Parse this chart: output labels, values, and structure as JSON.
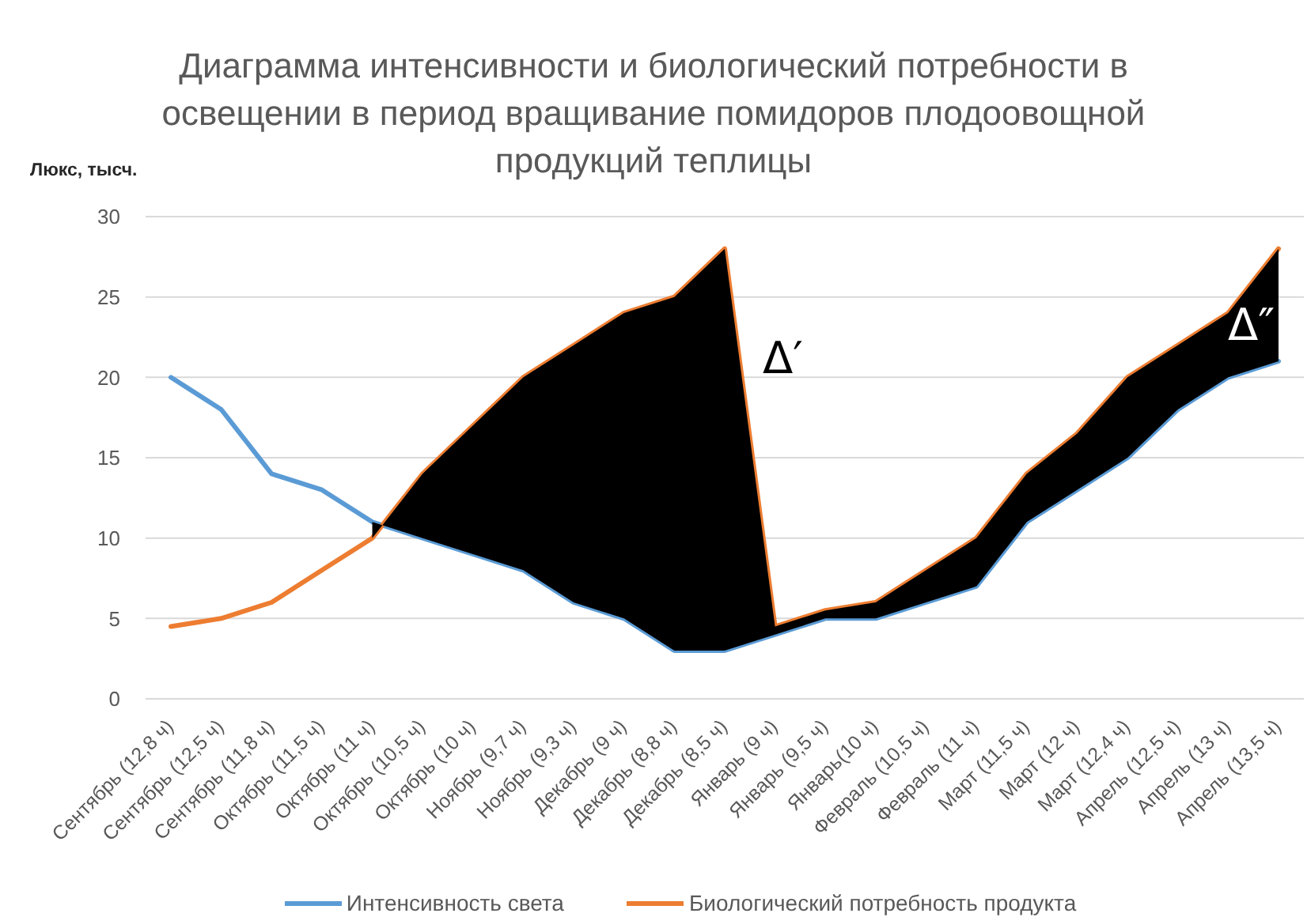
{
  "chart_data": {
    "type": "line",
    "title": "Диаграмма интенсивности и биологический потребности в освещении в период вращивание помидоров плодоовощной продукций теплицы",
    "ylabel": "Люкс, тысч.",
    "categories": [
      "Сентябрь (12,8 ч)",
      "Сентябрь (12,5 ч)",
      "Сентябрь (11,8 ч)",
      "Октябрь (11,5 ч)",
      "Октябрь (11 ч)",
      "Октябрь (10,5 ч)",
      "Октябрь (10 ч)",
      "Ноябрь (9,7 ч)",
      "Ноябрь (9,3 ч)",
      "Декабрь (9 ч)",
      "Декабрь (8,8 ч)",
      "Декабрь (8,5 ч)",
      "Январь (9 ч)",
      "Январь (9,5 ч)",
      "Январь(10 ч)",
      "Февраль (10,5 ч)",
      "Февраль (11 ч)",
      "Март (11,5 ч)",
      "Март (12 ч)",
      "Март (12,4 ч)",
      "Апрель (12,5 ч)",
      "Апрель (13 ч)",
      "Апрель (13,5 ч)"
    ],
    "series": [
      {
        "name": "Интенсивность света",
        "color": "#5b9bd5",
        "values": [
          20,
          18,
          14,
          13,
          11,
          10,
          9,
          8,
          6,
          5,
          3,
          3,
          4,
          5,
          5,
          6,
          7,
          11,
          13,
          15,
          18,
          20,
          21
        ]
      },
      {
        "name": "Биологический потребность продукта",
        "color": "#ed7d31",
        "values": [
          4.5,
          5,
          6,
          8,
          10,
          14,
          17,
          20,
          22,
          24,
          25,
          28,
          4.5,
          5.5,
          6,
          8,
          10,
          14,
          16.5,
          20,
          22,
          24,
          28
        ]
      },
      {
        "color": "#000000",
        "values": [
          null,
          null,
          null,
          null,
          null,
          null,
          null,
          null,
          null,
          null,
          null,
          null,
          null,
          null,
          null,
          null,
          null,
          null,
          null,
          null,
          null,
          null,
          null
        ],
        "lower": [
          null,
          null,
          null,
          null,
          11,
          10,
          9,
          8,
          6,
          5,
          3,
          3,
          4,
          5,
          5,
          6,
          7,
          11,
          13,
          15,
          18,
          20,
          21
        ],
        "upper": [
          null,
          null,
          null,
          null,
          10,
          14,
          17,
          20,
          22,
          24,
          25,
          28,
          4.5,
          5.5,
          6,
          8,
          10,
          14,
          16.5,
          20,
          22,
          24,
          28
        ]
      }
    ],
    "ylim": [
      0,
      30
    ],
    "yticks": [
      0,
      5,
      10,
      15,
      20,
      25,
      30
    ],
    "grid": "y",
    "legend": "bottom",
    "annotations": [
      "Δ′",
      "Δ″"
    ]
  }
}
